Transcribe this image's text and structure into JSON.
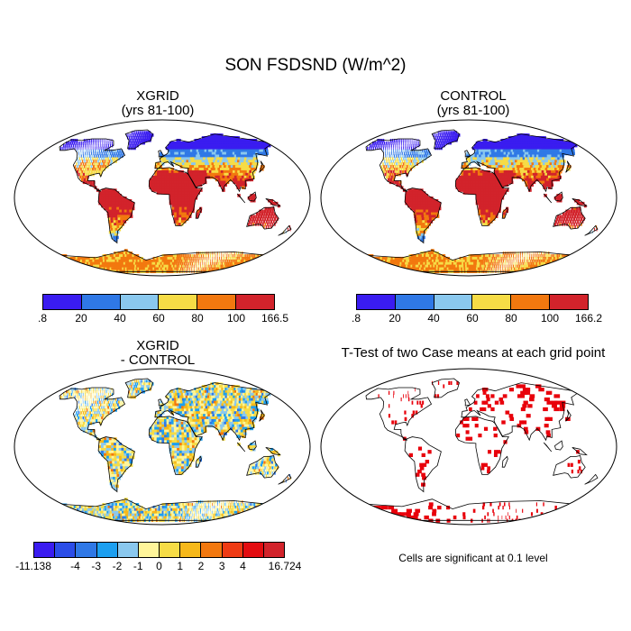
{
  "main_title": "SON FSDSND (W/m^2)",
  "panels": [
    {
      "id": "xgrid",
      "title_line1": "XGRID",
      "title_line2": "(yrs 81-100)"
    },
    {
      "id": "control",
      "title_line1": "CONTROL",
      "title_line2": "(yrs 81-100)"
    },
    {
      "id": "diff",
      "title_line1": "XGRID",
      "title_line2": "- CONTROL"
    },
    {
      "id": "ttest",
      "title_line1": "T-Test of two Case means at each grid point",
      "title_line2": ""
    }
  ],
  "colorbars": {
    "xgrid": {
      "colors": [
        "#3a1cf0",
        "#2f78e6",
        "#8ac8ee",
        "#f6dc46",
        "#f2780f",
        "#d2232b"
      ],
      "labels": [
        ".8",
        "20",
        "40",
        "60",
        "80",
        "100",
        "166.5"
      ]
    },
    "control": {
      "colors": [
        "#3a1cf0",
        "#2f78e6",
        "#8ac8ee",
        "#f6dc46",
        "#f2780f",
        "#d2232b"
      ],
      "labels": [
        ".8",
        "20",
        "40",
        "60",
        "80",
        "100",
        "166.2"
      ]
    },
    "diff": {
      "colors": [
        "#3a1cf0",
        "#2b4de8",
        "#2f78e6",
        "#1c9ff0",
        "#8ac8ee",
        "#fff59a",
        "#f6dc46",
        "#f6b81a",
        "#f2780f",
        "#ef3b14",
        "#e30c10",
        "#d2232b"
      ],
      "labels": [
        "-11.138",
        "-4",
        "-3",
        "-2",
        "-1",
        "0",
        "1",
        "2",
        "3",
        "4",
        "16.724"
      ],
      "label_positions": [
        0,
        2,
        3,
        4,
        5,
        6,
        7,
        8,
        9,
        10,
        12
      ]
    }
  },
  "significance_note": "Cells are significant at 0.1 level",
  "colors": {
    "significant": "#e8000b",
    "land_outline": "#000000",
    "ocean": "#ffffff"
  }
}
